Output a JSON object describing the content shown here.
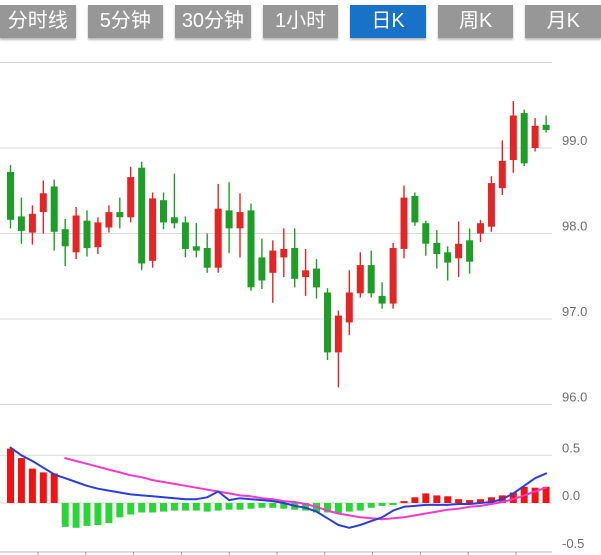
{
  "tabs": {
    "active_bg": "#1873c8",
    "inactive_bg": "#979797",
    "text_color": "#ffffff",
    "items": [
      {
        "id": "timeshare",
        "label": "分时线",
        "active": false
      },
      {
        "id": "5min",
        "label": "5分钟",
        "active": false
      },
      {
        "id": "30min",
        "label": "30分钟",
        "active": false
      },
      {
        "id": "1hour",
        "label": "1小时",
        "active": false
      },
      {
        "id": "daily-k",
        "label": "日K",
        "active": true
      },
      {
        "id": "weekly-k",
        "label": "周K",
        "active": false
      },
      {
        "id": "monthly-k",
        "label": "月K",
        "active": false
      }
    ]
  },
  "chart_data": [
    {
      "type": "candlestick",
      "pane": "price",
      "title": "",
      "up_color": "#e42525",
      "down_color": "#1e9e27",
      "grid": true,
      "y_axis": {
        "side": "right",
        "ylim": [
          95.75,
          100.05
        ],
        "ticks": [
          {
            "label": "99.0",
            "value": 99.0
          },
          {
            "label": "98.0",
            "value": 98.0
          },
          {
            "label": "97.0",
            "value": 97.0
          },
          {
            "label": "96.0",
            "value": 96.0
          }
        ],
        "unlabeled_gridlines": [
          100.0
        ]
      },
      "candles_format": [
        "open",
        "high",
        "low",
        "close"
      ],
      "candles": [
        [
          98.72,
          98.8,
          98.06,
          98.16
        ],
        [
          98.2,
          98.42,
          97.88,
          98.03
        ],
        [
          98.01,
          98.33,
          97.87,
          98.23
        ],
        [
          98.25,
          98.62,
          98.0,
          98.47
        ],
        [
          98.55,
          98.63,
          97.8,
          98.02
        ],
        [
          98.05,
          98.17,
          97.62,
          97.85
        ],
        [
          97.78,
          98.31,
          97.7,
          98.21
        ],
        [
          98.15,
          98.27,
          97.73,
          97.83
        ],
        [
          97.84,
          98.19,
          97.76,
          98.13
        ],
        [
          98.07,
          98.33,
          98.01,
          98.25
        ],
        [
          98.25,
          98.42,
          98.06,
          98.19
        ],
        [
          98.19,
          98.78,
          98.13,
          98.66
        ],
        [
          98.77,
          98.84,
          97.57,
          97.65
        ],
        [
          97.68,
          98.48,
          97.6,
          98.41
        ],
        [
          98.39,
          98.48,
          98.05,
          98.13
        ],
        [
          98.19,
          98.7,
          98.06,
          98.12
        ],
        [
          98.13,
          98.2,
          97.72,
          97.82
        ],
        [
          97.85,
          98.12,
          97.72,
          97.8
        ],
        [
          97.83,
          98.0,
          97.54,
          97.6
        ],
        [
          97.6,
          98.58,
          97.54,
          98.29
        ],
        [
          98.27,
          98.6,
          97.77,
          98.06
        ],
        [
          98.06,
          98.47,
          97.72,
          98.25
        ],
        [
          98.27,
          98.35,
          97.33,
          97.37
        ],
        [
          97.72,
          97.94,
          97.35,
          97.45
        ],
        [
          97.54,
          97.92,
          97.19,
          97.8
        ],
        [
          97.72,
          98.06,
          97.49,
          97.82
        ],
        [
          97.83,
          98.06,
          97.37,
          97.47
        ],
        [
          97.49,
          97.82,
          97.27,
          97.57
        ],
        [
          97.59,
          97.7,
          97.24,
          97.37
        ],
        [
          97.31,
          97.36,
          96.52,
          96.61
        ],
        [
          96.61,
          97.1,
          96.2,
          97.04
        ],
        [
          96.96,
          97.57,
          96.81,
          97.31
        ],
        [
          97.3,
          97.78,
          97.25,
          97.63
        ],
        [
          97.63,
          97.8,
          97.25,
          97.3
        ],
        [
          97.27,
          97.43,
          97.12,
          97.18
        ],
        [
          97.18,
          97.89,
          97.12,
          97.83
        ],
        [
          97.82,
          98.56,
          97.71,
          98.42
        ],
        [
          98.44,
          98.48,
          98.09,
          98.13
        ],
        [
          98.12,
          98.15,
          97.74,
          97.88
        ],
        [
          97.89,
          98.04,
          97.59,
          97.76
        ],
        [
          97.78,
          97.85,
          97.45,
          97.66
        ],
        [
          97.71,
          98.14,
          97.49,
          97.88
        ],
        [
          97.92,
          98.06,
          97.53,
          97.67
        ],
        [
          98.0,
          98.16,
          97.9,
          98.12
        ],
        [
          98.08,
          98.67,
          98.02,
          98.59
        ],
        [
          98.53,
          99.09,
          98.45,
          98.85
        ],
        [
          98.86,
          99.55,
          98.71,
          99.38
        ],
        [
          99.41,
          99.45,
          98.79,
          98.82
        ],
        [
          99.0,
          99.35,
          98.96,
          99.26
        ],
        [
          99.27,
          99.38,
          99.18,
          99.21
        ]
      ]
    },
    {
      "type": "macd",
      "pane": "indicator",
      "hist_up_color": "#f21212",
      "hist_down_color": "#2bd437",
      "dif_color": "#2c3ed6",
      "dea_color": "#f53ac8",
      "grid": true,
      "y_axis": {
        "side": "right",
        "ylim": [
          -0.55,
          0.55
        ],
        "ticks": [
          {
            "label": "0.5",
            "value": 0.5
          },
          {
            "label": "0.0",
            "value": 0.0
          },
          {
            "label": "-0.5",
            "value": -0.5
          }
        ]
      },
      "histogram": [
        0.57,
        0.47,
        0.36,
        0.32,
        0.31,
        -0.25,
        -0.26,
        -0.24,
        -0.23,
        -0.21,
        -0.15,
        -0.12,
        -0.1,
        -0.1,
        -0.09,
        -0.08,
        -0.08,
        -0.08,
        -0.09,
        -0.08,
        -0.07,
        -0.07,
        -0.06,
        -0.05,
        -0.05,
        -0.06,
        -0.07,
        -0.08,
        -0.1,
        -0.1,
        -0.11,
        -0.09,
        -0.08,
        -0.05,
        -0.03,
        -0.02,
        0.02,
        0.06,
        0.1,
        0.08,
        0.07,
        0.04,
        0.03,
        0.04,
        0.06,
        0.08,
        0.11,
        0.17,
        0.16,
        0.17
      ],
      "dif": [
        0.58,
        0.5,
        0.44,
        0.37,
        0.3,
        0.26,
        0.22,
        0.18,
        0.15,
        0.13,
        0.11,
        0.09,
        0.08,
        0.07,
        0.06,
        0.05,
        0.04,
        0.04,
        0.06,
        0.12,
        0.03,
        0.05,
        0.04,
        0.03,
        0.02,
        0.0,
        -0.03,
        -0.05,
        -0.09,
        -0.16,
        -0.23,
        -0.26,
        -0.23,
        -0.19,
        -0.15,
        -0.08,
        -0.04,
        -0.03,
        -0.02,
        -0.02,
        -0.02,
        -0.01,
        -0.01,
        0.0,
        0.01,
        0.04,
        0.1,
        0.18,
        0.26,
        0.31
      ],
      "dea": [
        null,
        null,
        null,
        null,
        null,
        0.47,
        0.44,
        0.41,
        0.38,
        0.35,
        0.32,
        0.29,
        0.27,
        0.24,
        0.22,
        0.2,
        0.18,
        0.16,
        0.14,
        0.12,
        0.1,
        0.08,
        0.07,
        0.05,
        0.04,
        0.02,
        0.01,
        -0.01,
        -0.04,
        -0.08,
        -0.11,
        -0.13,
        -0.15,
        -0.16,
        -0.17,
        -0.16,
        -0.15,
        -0.13,
        -0.11,
        -0.09,
        -0.07,
        -0.06,
        -0.04,
        -0.03,
        -0.01,
        0.01,
        0.04,
        0.08,
        0.12,
        0.16
      ]
    }
  ]
}
